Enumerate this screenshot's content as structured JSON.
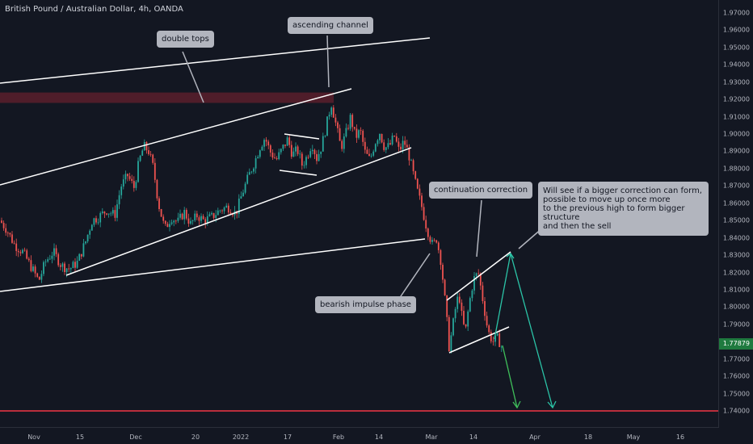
{
  "symbol_title": "British Pound / Australian Dollar, 4h, OANDA",
  "last_price": "1.77879",
  "colors": {
    "up": "#26a69a",
    "down": "#ef5350",
    "support": "#f23645",
    "zone": "#5a1e2b",
    "callout_bg": "#b2b5be"
  },
  "chart_data": {
    "type": "candlestick",
    "title": "British Pound / Australian Dollar, 4h, OANDA",
    "y_ticks": [
      "1.74000",
      "1.75000",
      "1.76000",
      "1.77000",
      "1.78000",
      "1.79000",
      "1.80000",
      "1.81000",
      "1.82000",
      "1.83000",
      "1.84000",
      "1.85000",
      "1.86000",
      "1.87000",
      "1.88000",
      "1.89000",
      "1.90000",
      "1.91000",
      "1.92000",
      "1.93000",
      "1.94000",
      "1.95000",
      "1.96000",
      "1.97000"
    ],
    "y_tick_values": [
      1.74,
      1.75,
      1.76,
      1.77,
      1.78,
      1.79,
      1.8,
      1.81,
      1.82,
      1.83,
      1.84,
      1.85,
      1.86,
      1.87,
      1.88,
      1.89,
      1.9,
      1.91,
      1.92,
      1.93,
      1.94,
      1.95,
      1.96,
      1.97
    ],
    "x_ticks": [
      "Nov",
      "15",
      "Dec",
      "20",
      "2022",
      "17",
      "Feb",
      "14",
      "Mar",
      "14",
      "Apr",
      "18",
      "May",
      "16"
    ],
    "ylim": [
      1.735,
      1.978
    ],
    "last_price": 1.77879,
    "support_level": 1.74,
    "resistance_zone": [
      1.918,
      1.924
    ],
    "price_path": [
      [
        0,
        1.85
      ],
      [
        8,
        1.845
      ],
      [
        18,
        1.836
      ],
      [
        28,
        1.832
      ],
      [
        40,
        1.822
      ],
      [
        48,
        1.815
      ],
      [
        56,
        1.826
      ],
      [
        66,
        1.832
      ],
      [
        76,
        1.824
      ],
      [
        86,
        1.822
      ],
      [
        96,
        1.826
      ],
      [
        106,
        1.838
      ],
      [
        114,
        1.85
      ],
      [
        122,
        1.852
      ],
      [
        132,
        1.856
      ],
      [
        142,
        1.853
      ],
      [
        150,
        1.87
      ],
      [
        158,
        1.876
      ],
      [
        166,
        1.869
      ],
      [
        172,
        1.884
      ],
      [
        178,
        1.893
      ],
      [
        184,
        1.89
      ],
      [
        190,
        1.88
      ],
      [
        196,
        1.86
      ],
      [
        204,
        1.845
      ],
      [
        212,
        1.852
      ],
      [
        220,
        1.849
      ],
      [
        228,
        1.855
      ],
      [
        236,
        1.848
      ],
      [
        244,
        1.853
      ],
      [
        252,
        1.85
      ],
      [
        262,
        1.852
      ],
      [
        272,
        1.856
      ],
      [
        282,
        1.858
      ],
      [
        292,
        1.854
      ],
      [
        300,
        1.866
      ],
      [
        308,
        1.876
      ],
      [
        316,
        1.885
      ],
      [
        322,
        1.893
      ],
      [
        328,
        1.898
      ],
      [
        334,
        1.89
      ],
      [
        342,
        1.885
      ],
      [
        350,
        1.892
      ],
      [
        356,
        1.897
      ],
      [
        362,
        1.888
      ],
      [
        368,
        1.891
      ],
      [
        374,
        1.882
      ],
      [
        380,
        1.887
      ],
      [
        386,
        1.895
      ],
      [
        392,
        1.886
      ],
      [
        398,
        1.893
      ],
      [
        404,
        1.905
      ],
      [
        410,
        1.918
      ],
      [
        416,
        1.905
      ],
      [
        422,
        1.892
      ],
      [
        428,
        1.9
      ],
      [
        434,
        1.91
      ],
      [
        440,
        1.898
      ],
      [
        446,
        1.902
      ],
      [
        452,
        1.889
      ],
      [
        458,
        1.885
      ],
      [
        464,
        1.895
      ],
      [
        470,
        1.901
      ],
      [
        476,
        1.892
      ],
      [
        482,
        1.893
      ],
      [
        488,
        1.899
      ],
      [
        494,
        1.89
      ],
      [
        500,
        1.896
      ],
      [
        506,
        1.888
      ],
      [
        510,
        1.88
      ],
      [
        516,
        1.868
      ],
      [
        522,
        1.858
      ],
      [
        528,
        1.846
      ],
      [
        536,
        1.835
      ],
      [
        540,
        1.84
      ],
      [
        546,
        1.826
      ],
      [
        552,
        1.798
      ],
      [
        556,
        1.776
      ],
      [
        560,
        1.788
      ],
      [
        564,
        1.8
      ],
      [
        568,
        1.808
      ],
      [
        572,
        1.793
      ],
      [
        576,
        1.785
      ],
      [
        580,
        1.8
      ],
      [
        586,
        1.816
      ],
      [
        592,
        1.82
      ],
      [
        598,
        1.803
      ],
      [
        604,
        1.786
      ],
      [
        610,
        1.78
      ],
      [
        616,
        1.782
      ],
      [
        622,
        1.776
      ]
    ]
  },
  "annotations": {
    "double_tops": "double tops",
    "ascending_channel": "ascending channel",
    "continuation_correction": "continuation correction",
    "bearish_impulse": "bearish impulse phase",
    "plan": "Will see if a bigger correction can form,\npossible to move up once more\nto the previous high to form bigger structure\nand then the sell"
  }
}
